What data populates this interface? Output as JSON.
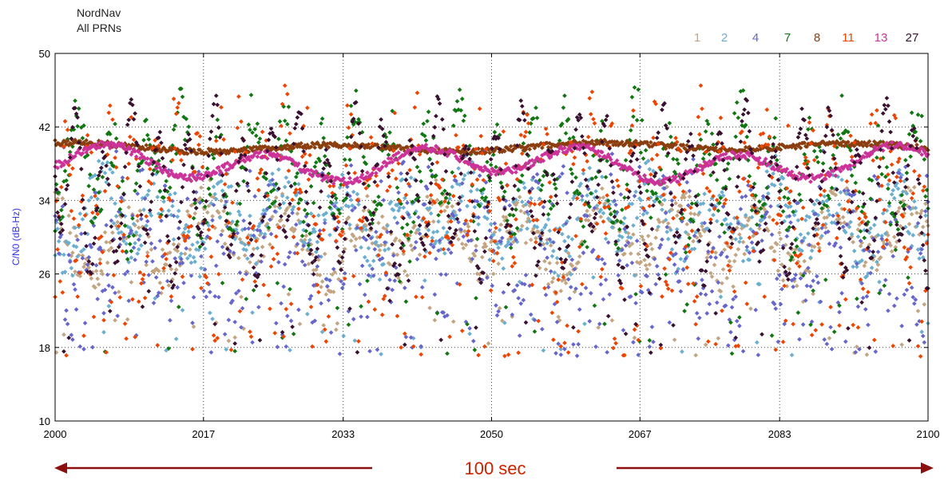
{
  "header": {
    "line1": "NordNav",
    "line2": "All PRNs"
  },
  "chart_data": {
    "type": "scatter",
    "xlabel": "100 sec",
    "ylabel": "C/N0 (dB-Hz)",
    "xlim": [
      2000,
      2100
    ],
    "ylim": [
      10,
      50
    ],
    "x_ticks": [
      2000,
      2017,
      2033,
      2050,
      2067,
      2083,
      2100
    ],
    "x_tick_labels": [
      "2000",
      "2017",
      "2033",
      "2050",
      "2067",
      "2083",
      "2100"
    ],
    "y_ticks": [
      10,
      18,
      26,
      34,
      42,
      50
    ],
    "y_tick_labels": [
      "10",
      "18",
      "26",
      "34",
      "42",
      "50"
    ],
    "grid": true,
    "grid_style": "dotted",
    "legend_position": "top-right",
    "duration_arrow": true,
    "series": [
      {
        "name": "1",
        "color": "#c4a582",
        "base": 30,
        "amp": 3,
        "period": 9,
        "noise": 2.5,
        "drops": 0.05
      },
      {
        "name": "2",
        "color": "#6aaed0",
        "base": 32,
        "amp": 3,
        "period": 7,
        "noise": 3,
        "drops": 0.06
      },
      {
        "name": "4",
        "color": "#6666cc",
        "base": 30,
        "amp": 4,
        "period": 3,
        "noise": 5,
        "drops": 0.25
      },
      {
        "name": "7",
        "color": "#117711",
        "base": 37,
        "amp": 5,
        "period": 4,
        "noise": 3,
        "drops": 0.08
      },
      {
        "name": "8",
        "color": "#8b3e0f",
        "base": 39.8,
        "amp": 0.4,
        "period": 30,
        "noise": 0.3,
        "drops": 0
      },
      {
        "name": "11",
        "color": "#ee4400",
        "base": 35,
        "amp": 6,
        "period": 2.5,
        "noise": 4,
        "drops": 0.18
      },
      {
        "name": "13",
        "color": "#cc3399",
        "base": 38,
        "amp": 1.5,
        "period": 18,
        "noise": 0.4,
        "drops": 0
      },
      {
        "name": "27",
        "color": "#3a1030",
        "base": 35,
        "amp": 7,
        "period": 3.2,
        "noise": 1.0,
        "drops": 0.05
      }
    ]
  }
}
